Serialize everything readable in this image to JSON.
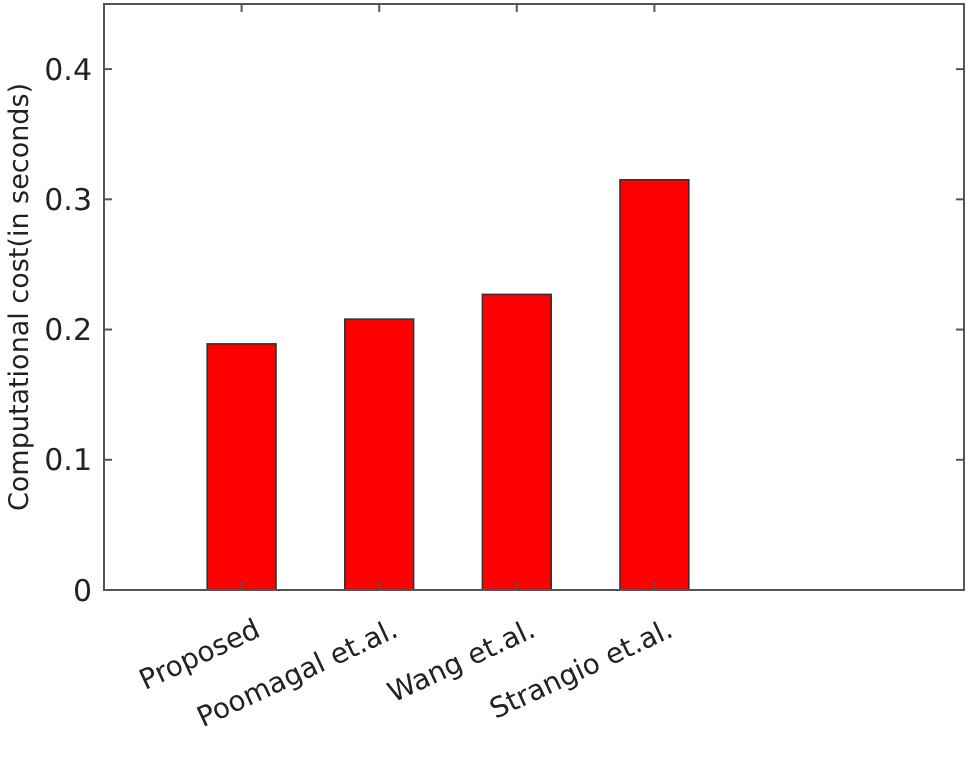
{
  "chart_data": {
    "type": "bar",
    "ylabel": "Computational cost(in seconds)",
    "categories": [
      "Proposed",
      "Poomagal et.al.",
      "Wang et.al.",
      "Strangio et.al."
    ],
    "values": [
      0.189,
      0.208,
      0.227,
      0.315
    ],
    "color": "#ff0000",
    "ylim": [
      0,
      0.45
    ],
    "yticks": [
      0,
      0.1,
      0.2,
      0.3,
      0.4
    ],
    "grid": false
  }
}
